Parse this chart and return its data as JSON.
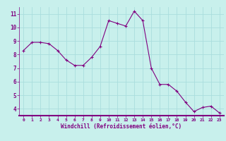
{
  "x": [
    0,
    1,
    2,
    3,
    4,
    5,
    6,
    7,
    8,
    9,
    10,
    11,
    12,
    13,
    14,
    15,
    16,
    17,
    18,
    19,
    20,
    21,
    22,
    23
  ],
  "y": [
    8.3,
    8.9,
    8.9,
    8.8,
    8.3,
    7.6,
    7.2,
    7.2,
    7.8,
    8.6,
    10.5,
    10.3,
    10.1,
    11.2,
    10.5,
    7.0,
    5.8,
    5.8,
    5.3,
    4.5,
    3.8,
    4.1,
    4.2,
    3.7
  ],
  "line_color": "#800080",
  "marker": "+",
  "marker_size": 3,
  "bg_color": "#c8f0ec",
  "grid_color": "#aadddd",
  "xlabel": "Windchill (Refroidissement éolien,°C)",
  "xlabel_color": "#800080",
  "tick_color": "#800080",
  "ylim": [
    3.5,
    11.5
  ],
  "xlim": [
    -0.5,
    23.5
  ],
  "yticks": [
    4,
    5,
    6,
    7,
    8,
    9,
    10,
    11
  ],
  "xticks": [
    0,
    1,
    2,
    3,
    4,
    5,
    6,
    7,
    8,
    9,
    10,
    11,
    12,
    13,
    14,
    15,
    16,
    17,
    18,
    19,
    20,
    21,
    22,
    23
  ],
  "spine_color": "#800080"
}
